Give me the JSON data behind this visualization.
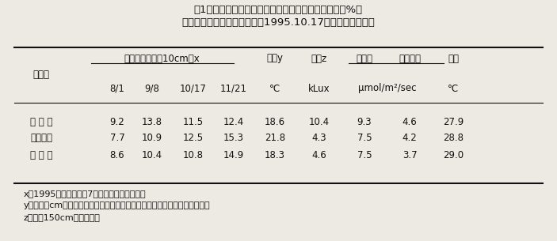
{
  "title_line1": "表1　マルチ処理及び園内作業道の造成が土壌水分（%）",
  "title_line2": "及び光合成等に及ぼす影響（1995.10.17．愛媛県吉田町）",
  "col_group_label": "土壌水分（０〜10cm）x",
  "col_headers_sub": [
    "8/1",
    "9/8",
    "10/17",
    "11/21"
  ],
  "col_headers_single": [
    "地温y",
    "照度z",
    "光合成",
    "蒸散速度",
    "葉温"
  ],
  "col_units_left": [
    "°C",
    "kLux"
  ],
  "col_units_mid": "μmol/m²/sec",
  "col_units_right": "°C",
  "row_label": "処　理",
  "rows": [
    [
      "マ ル チ",
      "9.2",
      "13.8",
      "11.5",
      "12.4",
      "18.6",
      "10.4",
      "9.3",
      "4.6",
      "27.9"
    ],
    [
      "無マルチ",
      "7.7",
      "10.9",
      "12.5",
      "15.3",
      "21.8",
      "4.3",
      "7.5",
      "4.2",
      "28.8"
    ],
    [
      "未 造 成",
      "8.6",
      "10.4",
      "10.8",
      "14.9",
      "18.3",
      "4.6",
      "7.5",
      "3.7",
      "29.0"
    ]
  ],
  "footnote_x": "x：1995年のデータで7月中に灌水している。",
  "footnote_y": "y：地中５cm。無マルチ区は裸地状態、未造成区は草生状態での値である。",
  "footnote_z": "z：地上150cmの散乱光。",
  "bg_color": "#ede9e3",
  "text_color": "#111111",
  "font_size": 8.5,
  "title_font_size": 9.5
}
